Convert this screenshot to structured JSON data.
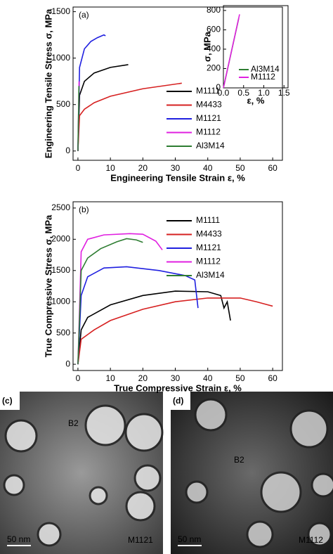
{
  "chart_data": [
    {
      "type": "line",
      "panel_label": "(a)",
      "x_label": "Engineering Tensile Strain ε, %",
      "y_label": "Engineering Tensile Stress σ, MPa",
      "xlim": [
        -1.5,
        63
      ],
      "ylim": [
        -100,
        1550
      ],
      "xticks": [
        0,
        10,
        20,
        30,
        40,
        50,
        60
      ],
      "yticks": [
        0,
        500,
        1000,
        1500
      ],
      "legend": "center right",
      "series": [
        {
          "name": "M1111",
          "color": "#000000",
          "x": [
            0,
            0.5,
            2,
            5,
            10,
            15.5
          ],
          "values": [
            0,
            600,
            750,
            840,
            900,
            930
          ]
        },
        {
          "name": "M4433",
          "color": "#d62020",
          "x": [
            0,
            0.5,
            2,
            5,
            10,
            20,
            32
          ],
          "values": [
            0,
            380,
            450,
            520,
            590,
            670,
            730
          ]
        },
        {
          "name": "M1121",
          "color": "#2020e0",
          "x": [
            0,
            0.5,
            2,
            4,
            6,
            8,
            8.5
          ],
          "values": [
            0,
            900,
            1100,
            1180,
            1220,
            1250,
            1240
          ]
        },
        {
          "name": "M1112",
          "color": "#e020e0",
          "x": [
            0,
            0.35
          ],
          "values": [
            0,
            750
          ]
        },
        {
          "name": "Al3M14",
          "color": "#2e7d32",
          "x": [
            0,
            0.3
          ],
          "values": [
            0,
            700
          ]
        }
      ]
    },
    {
      "type": "line",
      "x_label": "ε, %",
      "y_label": "σ, MPa",
      "xlim": [
        0,
        1.6
      ],
      "ylim": [
        0,
        850
      ],
      "xticks": [
        {
          "value": 0,
          "label": "0.0"
        },
        {
          "value": 0.5,
          "label": "0.5"
        },
        {
          "value": 1,
          "label": "1.0"
        },
        {
          "value": 1.5,
          "label": "1.5"
        }
      ],
      "yticks": [
        0,
        200,
        400,
        600,
        800
      ],
      "legend": "lower right",
      "series": [
        {
          "name": "Al3M14",
          "color": "#2e7d32",
          "x": [
            0,
            0.38
          ],
          "values": [
            0,
            720
          ]
        },
        {
          "name": "M1112",
          "color": "#e020e0",
          "x": [
            0,
            0.4
          ],
          "values": [
            0,
            760
          ]
        }
      ]
    },
    {
      "type": "line",
      "panel_label": "(b)",
      "x_label": "True Compressive Strain ε, %",
      "y_label": "True Compressive Stress σ, MPa",
      "xlim": [
        -1.5,
        63
      ],
      "ylim": [
        -100,
        2600
      ],
      "xticks": [
        0,
        10,
        20,
        30,
        40,
        50,
        60
      ],
      "yticks": [
        0,
        500,
        1000,
        1500,
        2000,
        2500
      ],
      "legend": "upper right",
      "series": [
        {
          "name": "M1111",
          "color": "#000000",
          "x": [
            0,
            1,
            3,
            10,
            20,
            30,
            40,
            44,
            45,
            46,
            47
          ],
          "values": [
            0,
            550,
            750,
            950,
            1100,
            1170,
            1160,
            1100,
            900,
            1000,
            700
          ]
        },
        {
          "name": "M4433",
          "color": "#d62020",
          "x": [
            0,
            1,
            5,
            10,
            20,
            30,
            40,
            50,
            55,
            60
          ],
          "values": [
            0,
            400,
            550,
            700,
            880,
            1000,
            1060,
            1060,
            1000,
            930
          ]
        },
        {
          "name": "M1121",
          "color": "#2020e0",
          "x": [
            0,
            1,
            3,
            8,
            15,
            25,
            33,
            36,
            37
          ],
          "values": [
            0,
            1100,
            1400,
            1540,
            1560,
            1500,
            1420,
            1350,
            900
          ]
        },
        {
          "name": "M1112",
          "color": "#e020e0",
          "x": [
            0,
            1,
            3,
            8,
            16,
            20,
            24,
            26
          ],
          "values": [
            0,
            1800,
            2000,
            2070,
            2090,
            2080,
            1970,
            1830
          ]
        },
        {
          "name": "Al3M14",
          "color": "#2e7d32",
          "x": [
            0,
            1,
            3,
            7,
            12,
            15,
            18,
            20
          ],
          "values": [
            0,
            1500,
            1700,
            1850,
            1960,
            2010,
            1990,
            1950
          ]
        }
      ]
    }
  ],
  "micrographs": [
    {
      "label": "(c)",
      "phase": "B2",
      "alloy": "M1121",
      "scale": "50 nm"
    },
    {
      "label": "(d)",
      "phase": "B2",
      "alloy": "M1112",
      "scale": "50 nm"
    }
  ]
}
